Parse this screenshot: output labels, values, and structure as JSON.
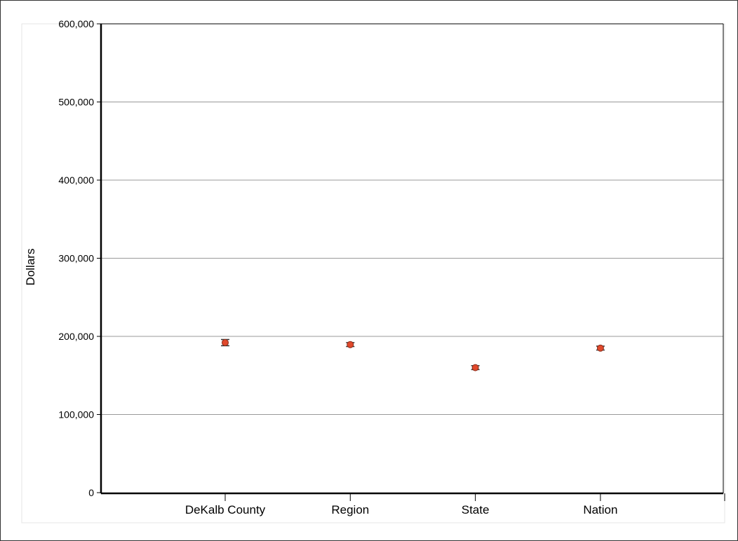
{
  "chart_data": {
    "type": "scatter",
    "title": "",
    "xlabel": "",
    "ylabel": "Dollars",
    "categories": [
      "DeKalb County",
      "Region",
      "State",
      "Nation"
    ],
    "series": [
      {
        "values": [
          192000,
          189500,
          160000,
          185000
        ],
        "error": [
          4000,
          2500,
          2500,
          2500
        ]
      }
    ],
    "ylim": [
      0,
      600000
    ],
    "yticks": [
      0,
      100000,
      200000,
      300000,
      400000,
      500000,
      600000
    ],
    "ytick_labels": [
      "0",
      "100,000",
      "200,000",
      "300,000",
      "400,000",
      "500,000",
      "600,000"
    ],
    "grid": true,
    "legend": "none",
    "colors": {
      "marker": "#e0492c",
      "marker_edge": "#8a2a18",
      "error_bar": "#333333",
      "grid": "#999999",
      "axis": "#000000",
      "panel_border": "#e6e6e6"
    }
  }
}
